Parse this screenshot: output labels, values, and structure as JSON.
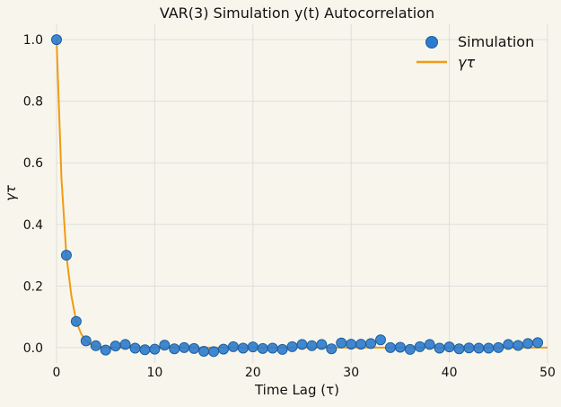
{
  "chart_data": {
    "type": "scatter",
    "title": "VAR(3) Simulation y(t) Autocorrelation",
    "xlabel": "Time Lag (τ)",
    "ylabel": "γτ",
    "xlim": [
      0,
      50
    ],
    "ylim": [
      -0.05,
      1.05
    ],
    "xticks": [
      0,
      10,
      20,
      30,
      40,
      50
    ],
    "yticks": [
      0.0,
      0.2,
      0.4,
      0.6,
      0.8,
      1.0
    ],
    "grid": true,
    "legend_position": "top-right",
    "colors": {
      "simulation": "#2b7bce",
      "theory": "#f39a12",
      "background": "#f8f6ec",
      "grid": "#dddddd"
    },
    "series": [
      {
        "name": "Simulation",
        "style": "markers",
        "x": [
          0,
          1,
          2,
          3,
          4,
          5,
          6,
          7,
          8,
          9,
          10,
          11,
          12,
          13,
          14,
          15,
          16,
          17,
          18,
          19,
          20,
          21,
          22,
          23,
          24,
          25,
          26,
          27,
          28,
          29,
          30,
          31,
          32,
          33,
          34,
          35,
          36,
          37,
          38,
          39,
          40,
          41,
          42,
          43,
          44,
          45,
          46,
          47,
          48,
          49
        ],
        "y": [
          1.0,
          0.3,
          0.085,
          0.022,
          0.006,
          -0.008,
          0.005,
          0.01,
          -0.002,
          -0.007,
          -0.005,
          0.008,
          -0.004,
          0.0,
          -0.003,
          -0.012,
          -0.013,
          -0.005,
          0.003,
          -0.002,
          0.002,
          -0.003,
          -0.002,
          -0.006,
          0.003,
          0.01,
          0.006,
          0.01,
          -0.004,
          0.015,
          0.011,
          0.011,
          0.013,
          0.025,
          0.0,
          0.001,
          -0.006,
          0.003,
          0.01,
          -0.002,
          0.002,
          -0.004,
          -0.001,
          -0.002,
          -0.002,
          0.0,
          0.01,
          0.007,
          0.013,
          0.016
        ]
      },
      {
        "name": "γτ",
        "style": "line",
        "x": [
          0,
          0.5,
          1,
          1.5,
          2,
          2.5,
          3,
          3.5,
          4,
          5,
          6,
          8,
          10,
          15,
          20,
          25,
          30,
          35,
          40,
          45,
          50
        ],
        "y": [
          1.0,
          0.55,
          0.3,
          0.17,
          0.085,
          0.045,
          0.022,
          0.01,
          0.004,
          0.0005,
          0.0,
          0.0,
          0.0,
          0.0,
          0.0,
          0.0,
          0.0,
          0.0,
          0.0,
          0.0,
          0.0
        ]
      }
    ]
  }
}
